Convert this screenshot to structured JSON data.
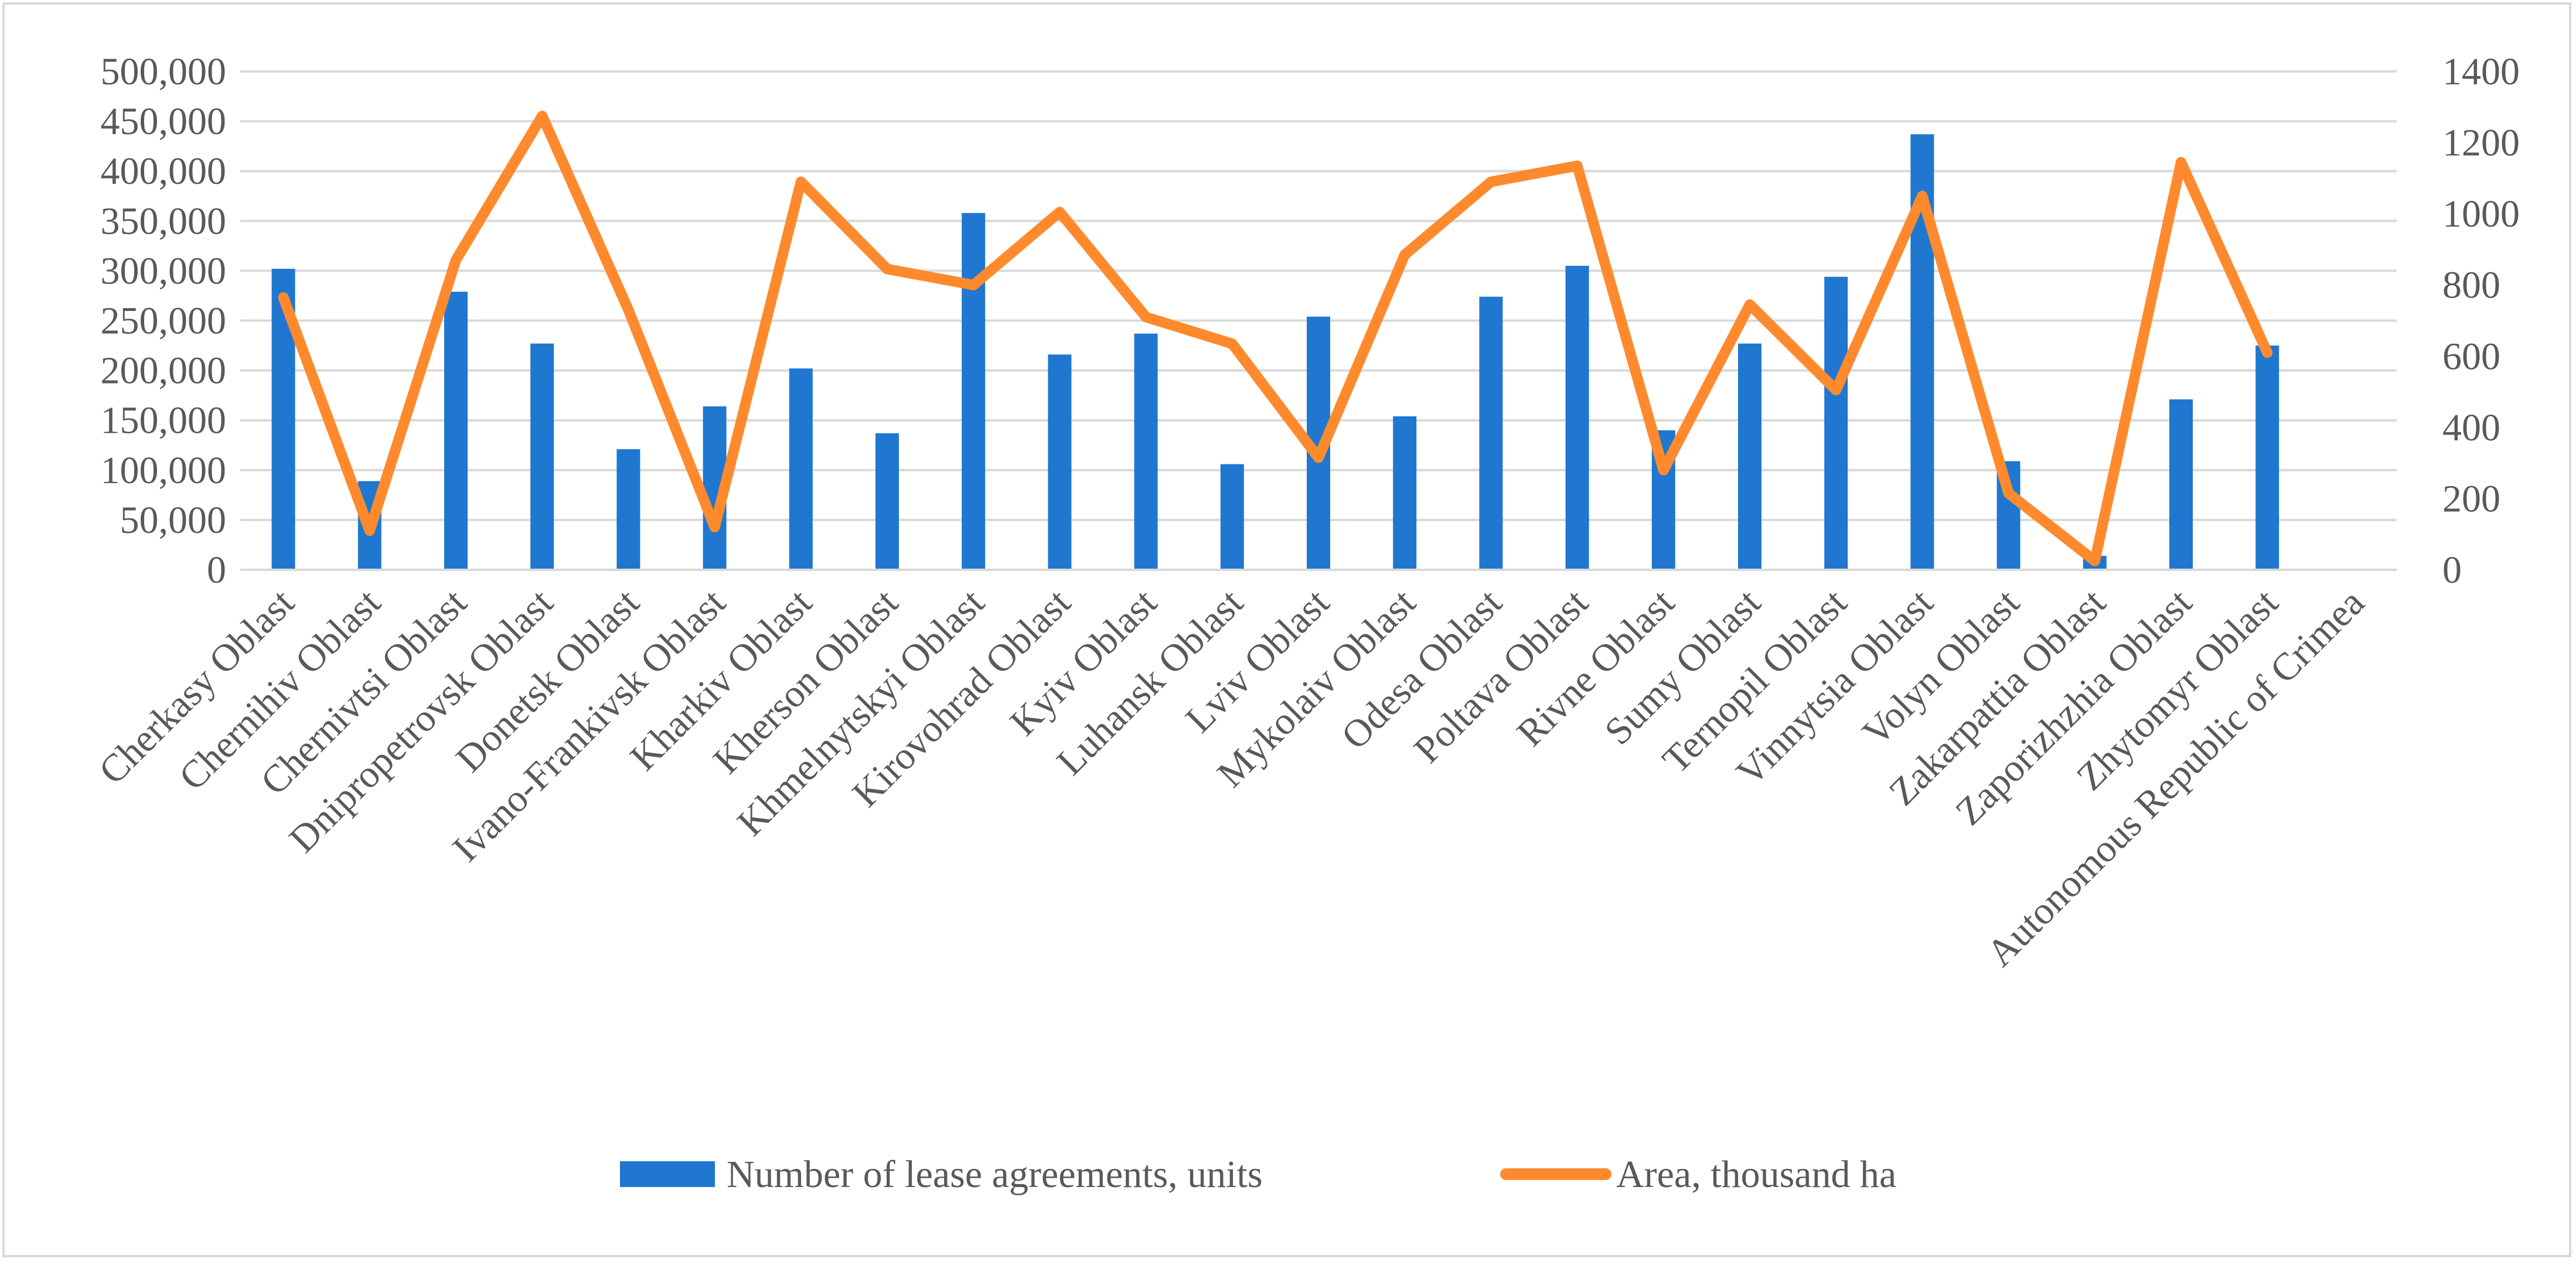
{
  "chart_data": {
    "type": "bar",
    "title": "",
    "xlabel": "",
    "ylabel": "",
    "categories": [
      "Cherkasy Oblast",
      "Chernihiv Oblast",
      "Chernivtsi Oblast",
      "Dnipropetrovsk Oblast",
      "Donetsk Oblast",
      "Ivano-Frankivsk Oblast",
      "Kharkiv Oblast",
      "Kherson Oblast",
      "Khmelnytskyi Oblast",
      "Kirovohrad Oblast",
      "Kyiv Oblast",
      "Luhansk Oblast",
      "Lviv Oblast",
      "Mykolaiv Oblast",
      "Odesa Oblast",
      "Poltava Oblast",
      "Rivne Oblast",
      "Sumy Oblast",
      "Ternopil Oblast",
      "Vinnytsia Oblast",
      "Volyn Oblast",
      "Zakarpattia Oblast",
      "Zaporizhzhia Oblast",
      "Zhytomyr Oblast",
      "Autonomous Republic of Crimea"
    ],
    "series": [
      {
        "name": "Number of lease agreements, units",
        "type": "bar",
        "axis": "left",
        "color": "#1f77d0",
        "values": [
          302000,
          89000,
          279000,
          227000,
          121000,
          164000,
          202000,
          137000,
          358000,
          216000,
          237000,
          106000,
          254000,
          154000,
          274000,
          305000,
          140000,
          227000,
          294000,
          437000,
          109000,
          14000,
          171000,
          225000,
          null
        ]
      },
      {
        "name": "Area, thousand ha",
        "type": "line",
        "axis": "right",
        "color": "#ff8a2e",
        "values": [
          765,
          110,
          870,
          1275,
          730,
          120,
          1090,
          845,
          800,
          1005,
          710,
          635,
          315,
          885,
          1090,
          1135,
          280,
          745,
          505,
          1050,
          215,
          25,
          1145,
          610,
          null
        ]
      }
    ],
    "ylim": [
      0,
      500000
    ],
    "y_ticks": [
      "0",
      "50,000",
      "100,000",
      "150,000",
      "200,000",
      "250,000",
      "300,000",
      "350,000",
      "400,000",
      "450,000",
      "500,000"
    ],
    "y2lim": [
      0,
      1400
    ],
    "y2_ticks": [
      "0",
      "200",
      "400",
      "600",
      "800",
      "1000",
      "1200",
      "1400"
    ],
    "grid": true,
    "legend_position": "bottom-center",
    "legend": [
      "Number of lease agreements, units",
      "Area, thousand ha"
    ]
  }
}
